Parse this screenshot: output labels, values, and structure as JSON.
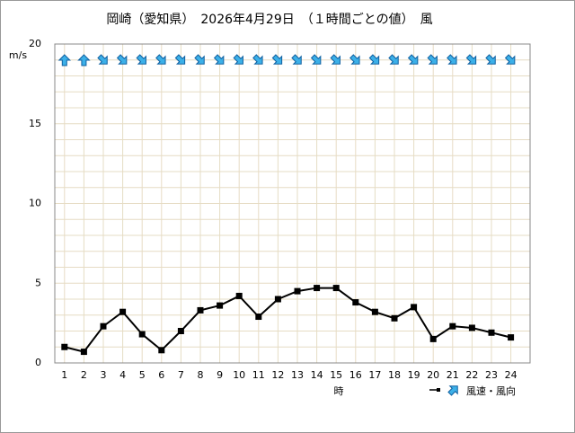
{
  "chart_data": {
    "type": "line",
    "title": "岡崎（愛知県）　2026年4月29日　（１時間ごとの値）　風",
    "y_unit": "m/s",
    "x_label": "時",
    "legend": "風速・風向",
    "categories": [
      1,
      2,
      3,
      4,
      5,
      6,
      7,
      8,
      9,
      10,
      11,
      12,
      13,
      14,
      15,
      16,
      17,
      18,
      19,
      20,
      21,
      22,
      23,
      24
    ],
    "series": [
      {
        "name": "風速",
        "color": "#000000",
        "values": [
          1.0,
          0.7,
          2.3,
          3.2,
          1.8,
          0.8,
          2.0,
          3.3,
          3.6,
          4.2,
          2.9,
          4.0,
          4.5,
          4.7,
          4.7,
          3.8,
          3.2,
          2.8,
          3.5,
          1.5,
          2.3,
          2.2,
          1.9,
          1.6
        ]
      }
    ],
    "wind_arrow_angles": [
      0,
      0,
      135,
      135,
      135,
      135,
      135,
      135,
      135,
      135,
      135,
      135,
      135,
      135,
      135,
      135,
      135,
      135,
      135,
      135,
      135,
      135,
      135,
      135
    ],
    "arrow_color": "#3cb0e8",
    "ylim": [
      0,
      20
    ],
    "yticks": [
      0,
      5,
      10,
      15,
      20
    ],
    "y_minor_ticks": [
      1,
      2,
      3,
      4,
      6,
      7,
      8,
      9,
      11,
      12,
      13,
      14,
      16,
      17,
      18,
      19
    ],
    "grid_color": "#e6dcc4"
  }
}
